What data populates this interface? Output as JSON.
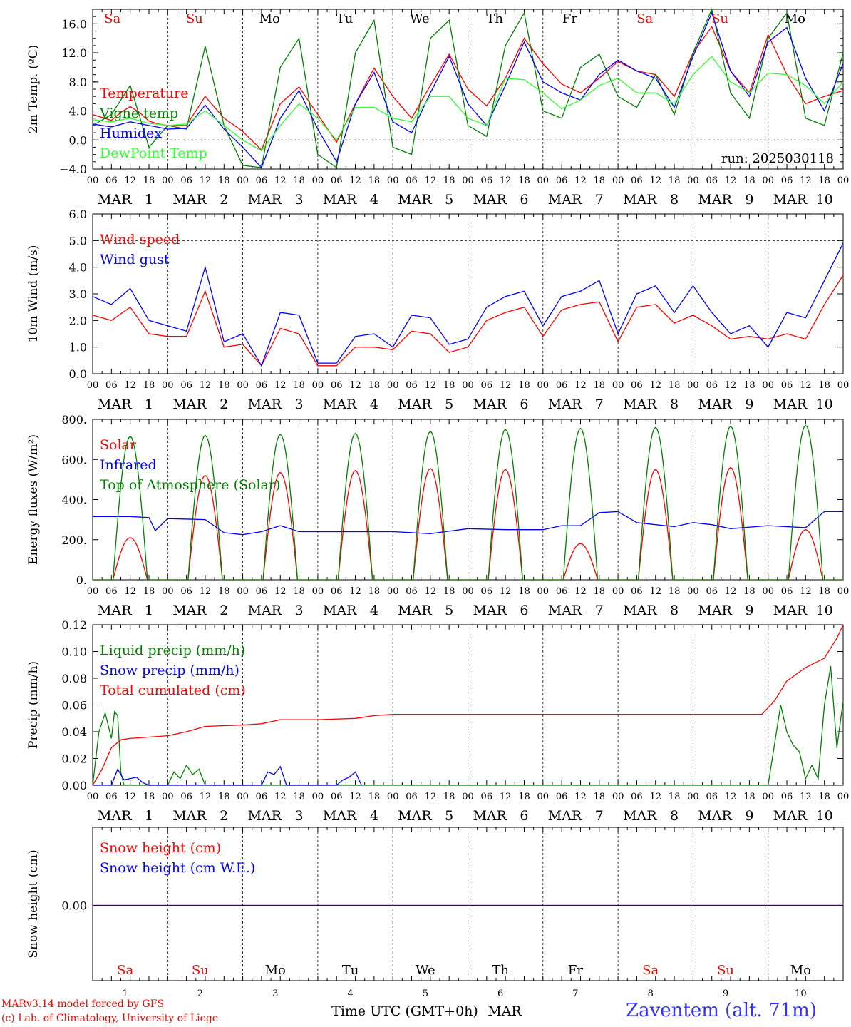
{
  "chart_data": [
    {
      "type": "line",
      "ylabel": "2m Temp. (ºC)",
      "ylim": [
        -4,
        18
      ],
      "yticks": [
        -4.0,
        0.0,
        4.0,
        8.0,
        12.0,
        16.0
      ],
      "ytick_labels": [
        "−4.0",
        "0.0",
        "4.0",
        "8.0",
        "12.0",
        "16.0"
      ],
      "ref_lines": [
        0
      ],
      "annotation": "run: 2025030118",
      "weekdays_top": true,
      "series": [
        {
          "name": "Temperature",
          "color": "#ff0000",
          "x": [
            0,
            6,
            9,
            12,
            15,
            18,
            21,
            24,
            30,
            36,
            42,
            48,
            54,
            60,
            66,
            72,
            78,
            84,
            90,
            96,
            102,
            108,
            114,
            120,
            126,
            132,
            138,
            144,
            150,
            156,
            162,
            168,
            174,
            180,
            186,
            192,
            198,
            204,
            210,
            216,
            222,
            228,
            234,
            240
          ],
          "values": [
            3.5,
            2.7,
            3.8,
            4.6,
            3.8,
            2.6,
            2.2,
            2.0,
            2.0,
            6.0,
            3.0,
            1.2,
            -1.4,
            5.0,
            7.3,
            3.5,
            -0.3,
            5.0,
            9.9,
            6.0,
            3.0,
            7.5,
            11.8,
            7.0,
            4.7,
            8.5,
            14.0,
            10.5,
            7.7,
            6.5,
            8.5,
            10.8,
            9.5,
            9.0,
            6.0,
            12.0,
            15.6,
            9.5,
            6.5,
            14.5,
            9.0,
            5.0,
            6.0,
            6.8
          ]
        },
        {
          "name": "Vigne temp",
          "color": "#008000",
          "x": [
            0,
            6,
            12,
            18,
            24,
            30,
            36,
            42,
            48,
            54,
            60,
            66,
            72,
            78,
            84,
            90,
            96,
            102,
            108,
            114,
            120,
            126,
            132,
            138,
            144,
            150,
            156,
            162,
            168,
            174,
            180,
            186,
            192,
            198,
            204,
            210,
            216,
            222,
            228,
            234,
            240
          ],
          "values": [
            2.0,
            3.5,
            7.5,
            -1.0,
            2.0,
            1.5,
            12.9,
            2.0,
            -3.5,
            -3.8,
            10.0,
            14.0,
            -2.0,
            -3.8,
            12.0,
            16.5,
            -1.0,
            -2.0,
            14.0,
            16.5,
            2.0,
            0.5,
            13.0,
            17.5,
            4.0,
            3.0,
            10.0,
            11.8,
            6.0,
            4.5,
            9.0,
            3.5,
            12.0,
            18.0,
            6.5,
            3.0,
            14.0,
            17.5,
            3.0,
            2.0,
            12.0
          ]
        },
        {
          "name": "Humidex",
          "color": "#0000ff",
          "x": [
            0,
            6,
            12,
            18,
            24,
            30,
            36,
            42,
            48,
            54,
            60,
            66,
            72,
            78,
            84,
            90,
            96,
            102,
            108,
            114,
            120,
            126,
            132,
            138,
            144,
            150,
            156,
            162,
            168,
            174,
            180,
            186,
            192,
            198,
            204,
            210,
            216,
            222,
            228,
            234,
            240
          ],
          "values": [
            2.2,
            1.8,
            2.5,
            2.0,
            1.5,
            1.6,
            4.8,
            1.5,
            -1.0,
            -3.8,
            3.0,
            6.8,
            1.5,
            -3.0,
            5.0,
            9.3,
            2.5,
            1.0,
            6.5,
            11.5,
            5.0,
            2.0,
            7.5,
            13.5,
            8.0,
            6.5,
            5.5,
            9.0,
            11.0,
            9.5,
            8.5,
            4.5,
            11.5,
            17.5,
            9.5,
            6.0,
            13.5,
            15.5,
            8.5,
            4.0,
            10.5
          ]
        },
        {
          "name": "DewPoint Temp",
          "color": "#33ff33",
          "x": [
            0,
            6,
            12,
            18,
            24,
            30,
            36,
            42,
            48,
            54,
            60,
            66,
            72,
            78,
            84,
            90,
            96,
            102,
            108,
            114,
            120,
            126,
            132,
            138,
            144,
            150,
            156,
            162,
            168,
            174,
            180,
            186,
            192,
            198,
            204,
            210,
            216,
            222,
            228,
            234,
            240
          ],
          "values": [
            2.8,
            2.5,
            3.0,
            2.3,
            2.0,
            2.2,
            4.0,
            2.0,
            0.0,
            -1.5,
            2.0,
            5.0,
            3.0,
            0.0,
            4.5,
            4.5,
            3.0,
            2.5,
            6.0,
            6.0,
            3.0,
            2.0,
            8.5,
            8.3,
            6.5,
            4.3,
            5.5,
            7.5,
            8.5,
            6.5,
            6.5,
            5.0,
            9.0,
            11.5,
            8.0,
            6.5,
            9.2,
            9.0,
            7.5,
            5.0,
            8.0
          ]
        }
      ]
    },
    {
      "type": "line",
      "ylabel": "10m Wind (m/s)",
      "ylim": [
        0,
        6
      ],
      "yticks": [
        0,
        1,
        2,
        3,
        4,
        5,
        6
      ],
      "ytick_labels": [
        "0.0",
        "1.0",
        "2.0",
        "3.0",
        "4.0",
        "5.0",
        "6.0"
      ],
      "ref_lines": [
        5
      ],
      "series": [
        {
          "name": "Wind speed",
          "color": "#ff0000",
          "x": [
            0,
            6,
            12,
            18,
            24,
            30,
            36,
            42,
            48,
            54,
            60,
            66,
            72,
            78,
            84,
            90,
            96,
            102,
            108,
            114,
            120,
            126,
            132,
            138,
            144,
            150,
            156,
            162,
            168,
            174,
            180,
            186,
            192,
            198,
            204,
            210,
            216,
            222,
            228,
            234,
            240
          ],
          "values": [
            2.2,
            2.0,
            2.5,
            1.5,
            1.4,
            1.4,
            3.1,
            1.0,
            1.1,
            0.3,
            1.7,
            1.5,
            0.3,
            0.3,
            1.0,
            1.0,
            0.9,
            1.6,
            1.5,
            0.8,
            1.0,
            2.0,
            2.3,
            2.5,
            1.4,
            2.4,
            2.6,
            2.7,
            1.2,
            2.5,
            2.6,
            1.9,
            2.2,
            1.8,
            1.3,
            1.4,
            1.3,
            1.5,
            1.3,
            2.6,
            3.7
          ]
        },
        {
          "name": "Wind gust",
          "color": "#0000ff",
          "x": [
            0,
            6,
            12,
            18,
            24,
            30,
            36,
            42,
            48,
            54,
            60,
            66,
            72,
            78,
            84,
            90,
            96,
            102,
            108,
            114,
            120,
            126,
            132,
            138,
            144,
            150,
            156,
            162,
            168,
            174,
            180,
            186,
            192,
            198,
            204,
            210,
            216,
            222,
            228,
            234,
            240
          ],
          "values": [
            2.9,
            2.6,
            3.2,
            2.0,
            1.8,
            1.6,
            4.0,
            1.2,
            1.5,
            0.3,
            2.3,
            2.2,
            0.4,
            0.4,
            1.4,
            1.5,
            1.0,
            2.2,
            2.1,
            1.1,
            1.3,
            2.5,
            2.9,
            3.1,
            1.8,
            2.9,
            3.1,
            3.5,
            1.5,
            3.0,
            3.3,
            2.3,
            3.3,
            2.3,
            1.5,
            1.8,
            1.0,
            2.3,
            2.1,
            3.5,
            4.9
          ]
        }
      ]
    },
    {
      "type": "line",
      "ylabel": "Energy fluxes (W/m²)",
      "ylim": [
        0,
        800
      ],
      "yticks": [
        0,
        200,
        400,
        600,
        800
      ],
      "ytick_labels": [
        "0.",
        "200.",
        "400.",
        "600.",
        "800."
      ],
      "series": [
        {
          "name": "Solar",
          "color": "#ff0000",
          "peaks": [
            210,
            520,
            535,
            545,
            555,
            550,
            180,
            550,
            560,
            250
          ]
        },
        {
          "name": "Infrared",
          "color": "#0000ff",
          "x": [
            0,
            12,
            18,
            20,
            24,
            36,
            42,
            48,
            54,
            60,
            66,
            72,
            84,
            96,
            108,
            120,
            132,
            144,
            150,
            156,
            162,
            168,
            174,
            180,
            186,
            192,
            198,
            204,
            216,
            228,
            234,
            240
          ],
          "values": [
            315,
            315,
            310,
            245,
            305,
            300,
            235,
            225,
            240,
            270,
            240,
            240,
            240,
            240,
            230,
            255,
            250,
            250,
            270,
            270,
            335,
            340,
            285,
            275,
            265,
            285,
            275,
            255,
            270,
            260,
            340,
            340
          ]
        },
        {
          "name": "Top of Atmosphere (Solar)",
          "color": "#008000",
          "peaks": [
            715,
            720,
            725,
            730,
            740,
            750,
            755,
            760,
            765,
            770
          ]
        }
      ],
      "daylight_hours": [
        6.5,
        17.5
      ]
    },
    {
      "type": "line",
      "ylabel": "Precip (mm/h)",
      "ylim": [
        0,
        0.12
      ],
      "yticks": [
        0,
        0.02,
        0.04,
        0.06,
        0.08,
        0.1,
        0.12
      ],
      "ytick_labels": [
        "0.00",
        "0.02",
        "0.04",
        "0.06",
        "0.08",
        "0.10",
        "0.12"
      ],
      "series": [
        {
          "name": "Liquid precip (mm/h)",
          "color": "#008000",
          "x": [
            0,
            2,
            4,
            6,
            7,
            8,
            9,
            10,
            24,
            26,
            28,
            30,
            32,
            34,
            36,
            54,
            216,
            218,
            220,
            222,
            224,
            226,
            228,
            230,
            232,
            234,
            236,
            238,
            240
          ],
          "values": [
            0,
            0.04,
            0.054,
            0.035,
            0.055,
            0.052,
            0.01,
            0,
            0,
            0.01,
            0.005,
            0.015,
            0.008,
            0.012,
            0,
            0,
            0,
            0.03,
            0.06,
            0.04,
            0.03,
            0.025,
            0.005,
            0.015,
            0.005,
            0.06,
            0.089,
            0.028,
            0.063
          ]
        },
        {
          "name": "Snow precip (mm/h)",
          "color": "#0000ff",
          "x": [
            0,
            6,
            8,
            10,
            14,
            16,
            18,
            48,
            50,
            54,
            56,
            58,
            60,
            62,
            78,
            80,
            82,
            84,
            86
          ],
          "values": [
            0,
            0,
            0.012,
            0.004,
            0.006,
            0.002,
            0,
            0,
            0,
            0,
            0.01,
            0.008,
            0.014,
            0,
            0,
            0.004,
            0.006,
            0.01,
            0
          ]
        },
        {
          "name": "Total cumulated (cm)",
          "color": "#ff0000",
          "x": [
            0,
            3,
            6,
            9,
            12,
            18,
            24,
            30,
            36,
            48,
            54,
            60,
            72,
            84,
            90,
            96,
            108,
            120,
            144,
            168,
            192,
            214,
            218,
            222,
            228,
            234,
            238,
            240
          ],
          "values": [
            0,
            0.012,
            0.028,
            0.034,
            0.035,
            0.036,
            0.037,
            0.04,
            0.044,
            0.045,
            0.046,
            0.049,
            0.049,
            0.05,
            0.052,
            0.053,
            0.053,
            0.053,
            0.053,
            0.053,
            0.053,
            0.053,
            0.063,
            0.078,
            0.088,
            0.095,
            0.11,
            0.12
          ]
        }
      ]
    },
    {
      "type": "line",
      "ylabel": "Snow height (cm)",
      "yticks": [
        0
      ],
      "ytick_labels": [
        "0.00"
      ],
      "series": [
        {
          "name": "Snow height (cm)",
          "color": "#ff0000",
          "x": [
            0,
            240
          ],
          "values": [
            0,
            0
          ]
        },
        {
          "name": "Snow height (cm W.E.)",
          "color": "#0000ff",
          "x": [
            0,
            240
          ],
          "values": [
            0,
            0
          ]
        }
      ],
      "weekdays_bottom": true
    }
  ],
  "time_axis": {
    "hour_labels": [
      "00",
      "06",
      "12",
      "18"
    ],
    "end_label": "00",
    "month": "MAR",
    "days": [
      "1",
      "2",
      "3",
      "4",
      "5",
      "6",
      "7",
      "8",
      "9",
      "10"
    ],
    "weekdays": [
      "Sa",
      "Su",
      "Mo",
      "Tu",
      "We",
      "Th",
      "Fr",
      "Sa",
      "Su",
      "Mo"
    ],
    "weekday_colors": [
      "#ff0000",
      "#ff0000",
      "#000000",
      "#000000",
      "#000000",
      "#000000",
      "#000000",
      "#ff0000",
      "#ff0000",
      "#000000"
    ],
    "xlabel": "Time UTC (GMT+0h)",
    "xlabel_month": "MAR"
  },
  "footer": {
    "credit_line1": "MARv3.14 model forced by GFS",
    "credit_line2": "(c) Lab. of Climatology, University of Liege",
    "station": "Zaventem (alt. 71m)"
  }
}
